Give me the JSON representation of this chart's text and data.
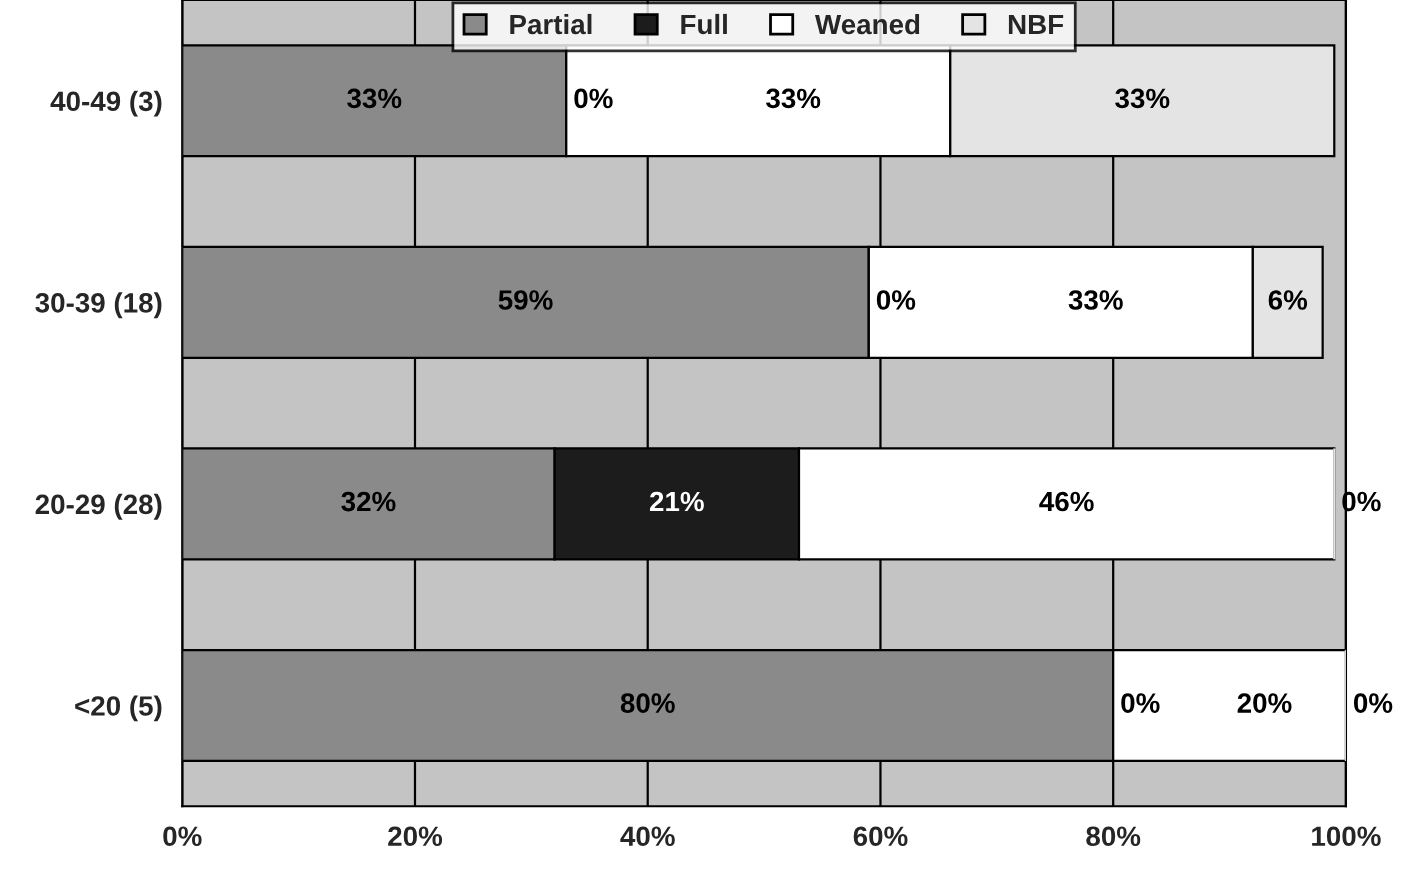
{
  "chart_data": {
    "type": "bar",
    "orientation": "horizontal",
    "stacked": true,
    "grid": "x",
    "legend": "top",
    "categories": [
      "40-49 (3)",
      "30-39 (18)",
      "20-29 (28)",
      "<20 (5)"
    ],
    "series": [
      {
        "name": "Partial",
        "color": "#8a8a8a",
        "values": [
          33,
          59,
          32,
          80
        ],
        "value_labels": [
          "33%",
          "59%",
          "32%",
          "80%"
        ]
      },
      {
        "name": "Full",
        "color": "#1c1c1c",
        "values": [
          0,
          0,
          21,
          0
        ],
        "value_labels": [
          "0%",
          "0%",
          "21%",
          "0%"
        ]
      },
      {
        "name": "Weaned",
        "color": "#ffffff",
        "values": [
          33,
          33,
          46,
          20
        ],
        "value_labels": [
          "33%",
          "33%",
          "46%",
          "20%"
        ]
      },
      {
        "name": "NBF",
        "color": "#e4e4e4",
        "values": [
          33,
          6,
          0,
          0
        ],
        "value_labels": [
          "33%",
          "6%",
          "0%",
          "0%"
        ]
      }
    ],
    "xlim": [
      0,
      100
    ],
    "xticks": [
      {
        "value": 0,
        "label": "0%"
      },
      {
        "value": 20,
        "label": "20%"
      },
      {
        "value": 40,
        "label": "40%"
      },
      {
        "value": 60,
        "label": "60%"
      },
      {
        "value": 80,
        "label": "80%"
      },
      {
        "value": 100,
        "label": "100%"
      }
    ]
  }
}
